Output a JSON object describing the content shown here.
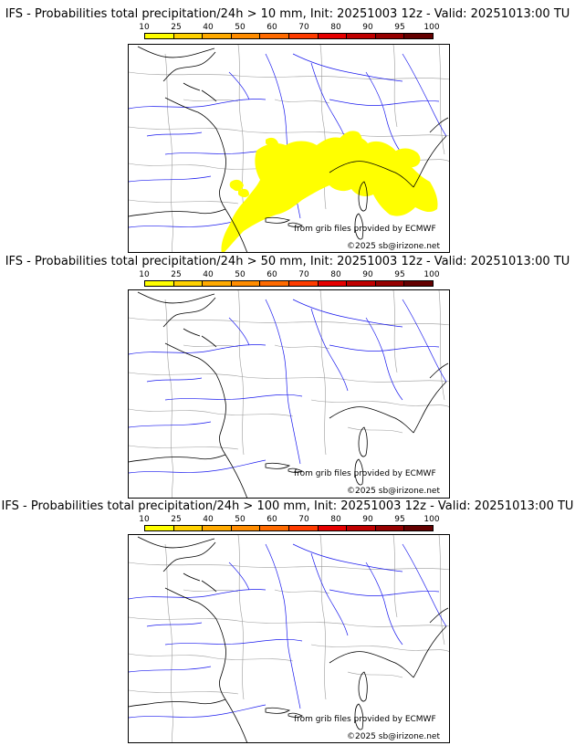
{
  "panels": [
    {
      "title": "IFS - Probabilities total precipitation/24h > 10 mm, Init: 20251003 12z - Valid: 20251013:00 TU",
      "has_precip": true
    },
    {
      "title": "IFS - Probabilities total precipitation/24h > 50 mm, Init: 20251003 12z - Valid: 20251013:00 TU",
      "has_precip": false
    },
    {
      "title": "IFS - Probabilities total precipitation/24h > 100 mm, Init: 20251003 12z - Valid: 20251013:00 TU",
      "has_precip": false
    }
  ],
  "colorbar": {
    "labels": [
      "10",
      "25",
      "40",
      "50",
      "60",
      "70",
      "80",
      "90",
      "95",
      "100"
    ],
    "colors": [
      "#ffff00",
      "#ffd200",
      "#ffaa00",
      "#ff8c00",
      "#ff6a00",
      "#ff3c00",
      "#e60000",
      "#c00000",
      "#960000",
      "#640000"
    ]
  },
  "credits": {
    "provider": "from grib files provided by ECMWF",
    "copyright": "©2025 sb@irizone.net"
  },
  "colors": {
    "precip": "#ffff00",
    "coast": "#000000",
    "rivers": "#1a1aee",
    "borders": "#9a9a9a"
  }
}
